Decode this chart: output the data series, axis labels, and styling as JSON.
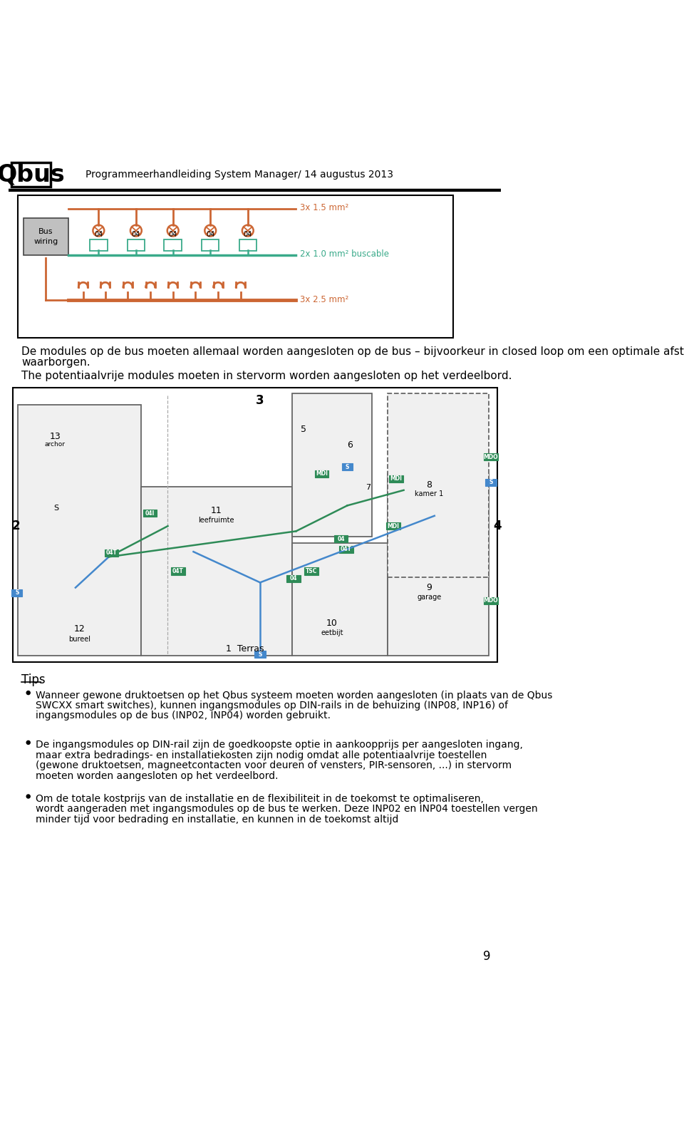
{
  "header_title": "Programmeerhandleiding System Manager/ 14 augustus 2013",
  "header_logo": "Qbus",
  "page_number": "9",
  "paragraph1": "De modules op de bus moeten allemaal worden aangesloten op de bus – bijvoorkeur in closed loop om een optimale afstand te waarborgen.",
  "paragraph2": "The potentiaalvrije modules moeten in stervorm worden aangesloten op het verdeelbord.",
  "tips_title": "Tips",
  "bullet1": "Wanneer gewone druktoetsen op het Qbus systeem moeten worden aangesloten (in plaats van de Qbus SWCXX smart switches), kunnen ingangsmodules op DIN-rails in de behuizing (INP08, INP16) of ingangsmodules op de bus (INP02, INP04) worden gebruikt.",
  "bullet2": "De ingangsmodules op DIN-rail zijn de goedkoopste optie in aankoopprijs per aangesloten ingang, maar extra bedradings- en installatiekosten zijn nodig omdat alle potentiaalvrije toestellen (gewone druktoetsen, magneetcontacten voor deuren of vensters, PIR-sensoren, ...) in stervorm moeten worden aangesloten op het verdeelbord.",
  "bullet3": "Om de totale kostprijs van de installatie en de flexibiliteit in de toekomst te optimaliseren, wordt aangeraden met ingangsmodules op de bus te werken. Deze INP02 en INP04 toestellen vergen minder tijd voor bedrading en installatie, en kunnen in de toekomst altijd",
  "wire_label1": "3x 1.5 mm²",
  "wire_label2": "2x 1.0 mm² buscable",
  "wire_label3": "3x 2.5 mm²",
  "bus_wiring_label": "Bus\nwiring",
  "bg_color": "#ffffff",
  "teal_color": "#3aaa8a",
  "orange_color": "#cc6633",
  "green_marker": "#2e8b57",
  "blue_marker": "#4488CC",
  "text_color": "#000000",
  "wall_color": "#666666",
  "page_bg": "#f0f0f0"
}
